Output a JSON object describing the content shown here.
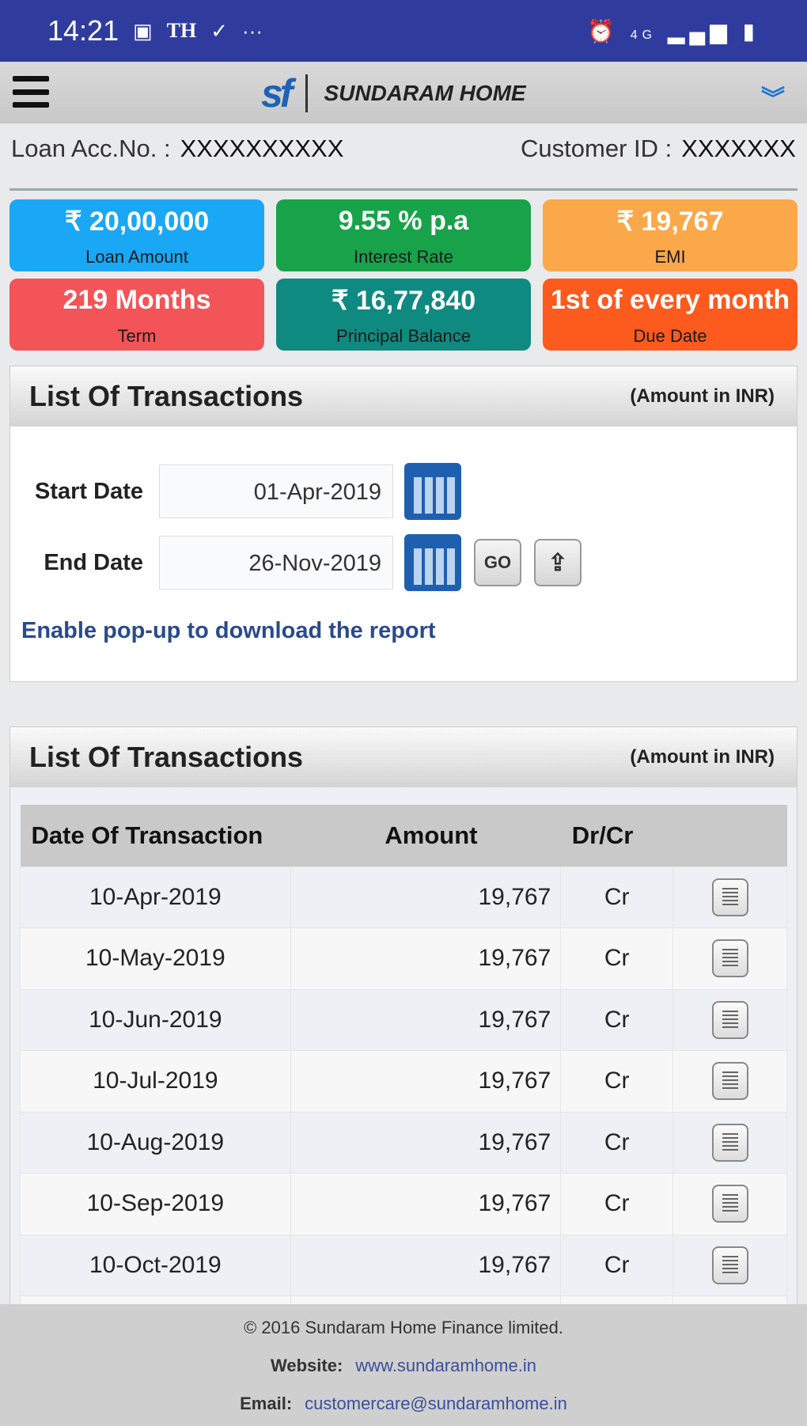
{
  "status_bar": {
    "time": "14:21",
    "left_icons": [
      "image-icon",
      "TH",
      "check-circle-icon",
      "more-icon"
    ],
    "right_icons": [
      "alarm-icon",
      "4G",
      "signal-icon",
      "battery-icon"
    ],
    "th": "TH",
    "dots": "···",
    "net": "4G"
  },
  "header": {
    "brand": "SUNDARAM HOME",
    "logo_text": "sf"
  },
  "account": {
    "loan_label": "Loan Acc.No. :",
    "loan_value": "XXXXXXXXXX",
    "customer_label": "Customer ID :",
    "customer_value": "XXXXXXX"
  },
  "tiles": [
    {
      "value": "₹ 20,00,000",
      "label": "Loan Amount",
      "color": "#1aa7f5"
    },
    {
      "value": "9.55 % p.a",
      "label": "Interest Rate",
      "color": "#18a24a"
    },
    {
      "value": "₹ 19,767",
      "label": "EMI",
      "color": "#fba84a"
    },
    {
      "value": "219 Months",
      "label": "Term",
      "color": "#f25458"
    },
    {
      "value": "₹ 16,77,840",
      "label": "Principal Balance",
      "color": "#0f8a80"
    },
    {
      "value": "1st of every month",
      "label": "Due Date",
      "color": "#fd5a1e"
    }
  ],
  "filter": {
    "title": "List Of Transactions",
    "amount_note": "(Amount in INR)",
    "start_label": "Start Date",
    "start_value": "01-Apr-2019",
    "end_label": "End Date",
    "end_value": "26-Nov-2019",
    "go_label": "GO",
    "popup_note": "Enable pop-up to download the report"
  },
  "transactions": {
    "title": "List Of Transactions",
    "amount_note": "(Amount in INR)",
    "columns": [
      "Date Of Transaction",
      "Amount",
      "Dr/Cr",
      ""
    ],
    "rows": [
      {
        "date": "10-Apr-2019",
        "amount": "19,767",
        "type": "Cr"
      },
      {
        "date": "10-May-2019",
        "amount": "19,767",
        "type": "Cr"
      },
      {
        "date": "10-Jun-2019",
        "amount": "19,767",
        "type": "Cr"
      },
      {
        "date": "10-Jul-2019",
        "amount": "19,767",
        "type": "Cr"
      },
      {
        "date": "10-Aug-2019",
        "amount": "19,767",
        "type": "Cr"
      },
      {
        "date": "10-Sep-2019",
        "amount": "19,767",
        "type": "Cr"
      },
      {
        "date": "10-Oct-2019",
        "amount": "19,767",
        "type": "Cr"
      }
    ]
  },
  "footer": {
    "copyright": "© 2016 Sundaram Home Finance limited.",
    "website_label": "Website:",
    "website": "www.sundaramhome.in",
    "email_label": "Email:",
    "email": "customercare@sundaramhome.in"
  }
}
